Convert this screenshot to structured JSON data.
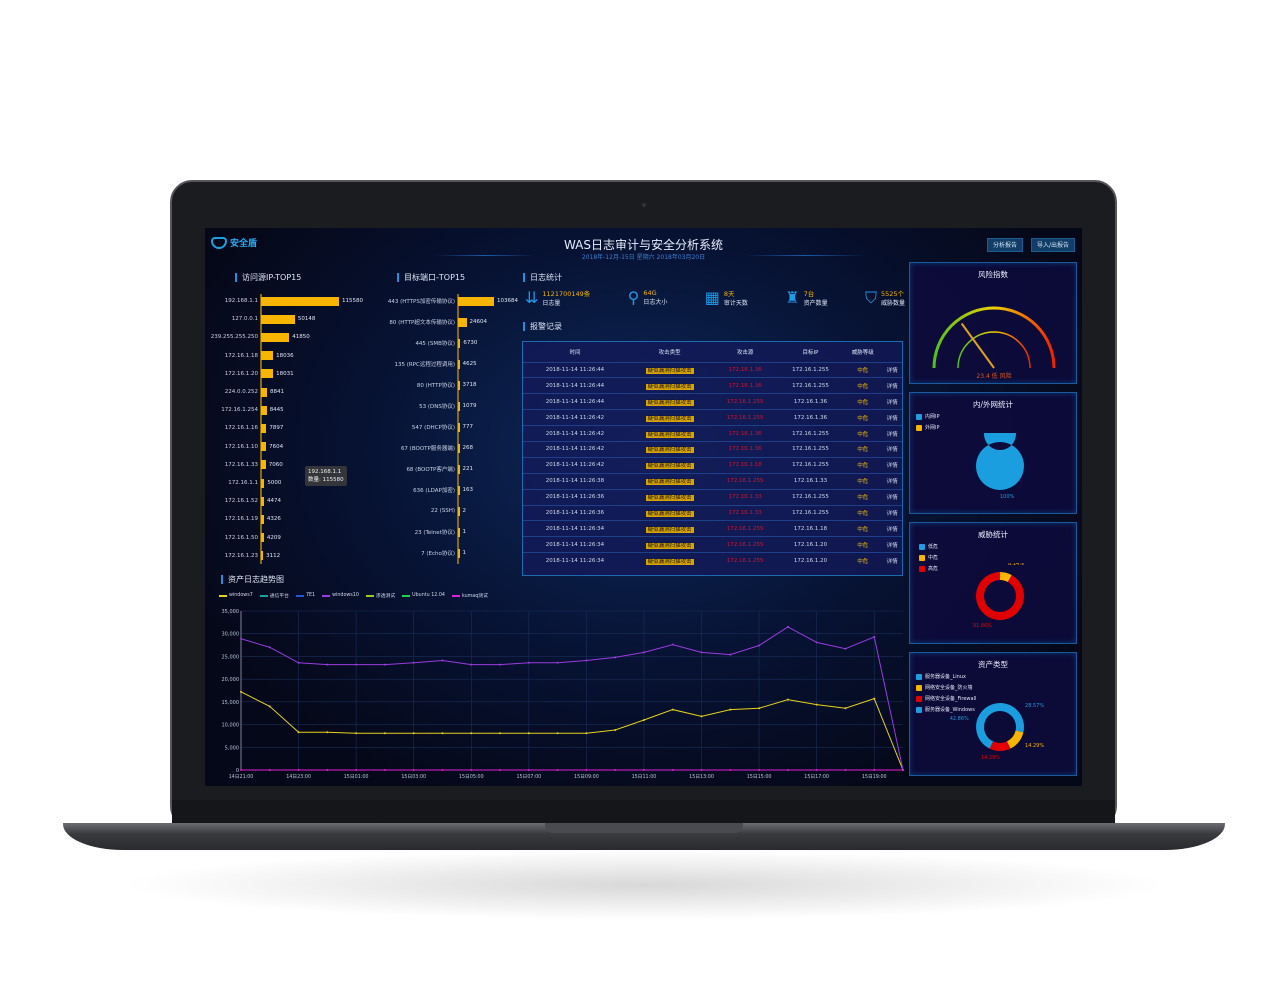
{
  "header": {
    "logo_text": "安全盾",
    "title": "WAS日志审计与安全分析系统",
    "subtitle": "2018年-12月-15日 星期六 2018年03月20日",
    "buttons": [
      "分析报告",
      "导入/出报告"
    ]
  },
  "ip_top15": {
    "title": "访问源IP-TOP15",
    "items": [
      {
        "label": "192.168.1.1",
        "value": 115580
      },
      {
        "label": "127.0.0.1",
        "value": 50148
      },
      {
        "label": "239.255.255.250",
        "value": 41850
      },
      {
        "label": "172.16.1.18",
        "value": 18036
      },
      {
        "label": "172.16.1.20",
        "value": 18031
      },
      {
        "label": "224.0.0.252",
        "value": 8841
      },
      {
        "label": "172.16.1.254",
        "value": 8445
      },
      {
        "label": "172.16.1.16",
        "value": 7897
      },
      {
        "label": "172.16.1.10",
        "value": 7604
      },
      {
        "label": "172.16.1.33",
        "value": 7060
      },
      {
        "label": "172.16.1.1",
        "value": 5000
      },
      {
        "label": "172.16.1.52",
        "value": 4474
      },
      {
        "label": "172.16.1.19",
        "value": 4326
      },
      {
        "label": "172.16.1.50",
        "value": 4209
      },
      {
        "label": "172.16.1.23",
        "value": 3112
      }
    ],
    "tooltip": {
      "line1": "192.168.1.1",
      "line2": "数量: 115580"
    }
  },
  "port_top15": {
    "title": "目标端口-TOP15",
    "items": [
      {
        "label": "443 (HTTPS加密传输协议)",
        "value": 103684
      },
      {
        "label": "80 (HTTP超文本传输协议)",
        "value": 24604
      },
      {
        "label": "445 (SMB协议)",
        "value": 6730
      },
      {
        "label": "135 (RPC远程过程调用)",
        "value": 4625
      },
      {
        "label": "80 (HTTP协议)",
        "value": 3718
      },
      {
        "label": "53 (DNS协议)",
        "value": 1079
      },
      {
        "label": "547 (DHCP协议)",
        "value": 777
      },
      {
        "label": "67 (BOOTP服务器端)",
        "value": 268
      },
      {
        "label": "68 (BOOTP客户端)",
        "value": 221
      },
      {
        "label": "636 (LDAP加密)",
        "value": 163
      },
      {
        "label": "22 (SSH)",
        "value": 2
      },
      {
        "label": "23 (Telnet协议)",
        "value": 1
      },
      {
        "label": "7 (Echo协议)",
        "value": 1
      }
    ]
  },
  "log_stats": {
    "title": "日志统计",
    "items": [
      {
        "icon": "sort-icon",
        "value": "1121700149条",
        "label": "日志量"
      },
      {
        "icon": "search-zoom-icon",
        "value": "64G",
        "label": "日志大小"
      },
      {
        "icon": "calendar-icon",
        "value": "8天",
        "label": "审计天数"
      },
      {
        "icon": "asset-icon",
        "value": "7台",
        "label": "资产数量"
      },
      {
        "icon": "shield-icon",
        "value": "5525个",
        "label": "威胁数量"
      }
    ]
  },
  "alarms": {
    "title": "报警记录",
    "columns": [
      "时间",
      "攻击类型",
      "攻击源",
      "目标IP",
      "威胁等级",
      ""
    ],
    "rows": [
      [
        "2018-11-14 11:26:44",
        "疑似漏洞扫描攻击",
        "172.16.1.36",
        "172.16.1.255",
        "中危",
        "详情"
      ],
      [
        "2018-11-14 11:26:44",
        "疑似漏洞扫描攻击",
        "172.16.1.36",
        "172.16.1.255",
        "中危",
        "详情"
      ],
      [
        "2018-11-14 11:26:44",
        "疑似漏洞扫描攻击",
        "172.16.1.255",
        "172.16.1.36",
        "中危",
        "详情"
      ],
      [
        "2018-11-14 11:26:42",
        "疑似漏洞扫描攻击",
        "172.16.1.255",
        "172.16.1.36",
        "中危",
        "详情"
      ],
      [
        "2018-11-14 11:26:42",
        "疑似漏洞扫描攻击",
        "172.16.1.36",
        "172.16.1.255",
        "中危",
        "详情"
      ],
      [
        "2018-11-14 11:26:42",
        "疑似漏洞扫描攻击",
        "172.16.1.36",
        "172.16.1.255",
        "中危",
        "详情"
      ],
      [
        "2018-11-14 11:26:42",
        "疑似漏洞扫描攻击",
        "172.16.1.18",
        "172.16.1.255",
        "中危",
        "详情"
      ],
      [
        "2018-11-14 11:26:38",
        "疑似漏洞扫描攻击",
        "172.16.1.255",
        "172.16.1.33",
        "中危",
        "详情"
      ],
      [
        "2018-11-14 11:26:36",
        "疑似漏洞扫描攻击",
        "172.16.1.33",
        "172.16.1.255",
        "中危",
        "详情"
      ],
      [
        "2018-11-14 11:26:36",
        "疑似漏洞扫描攻击",
        "172.16.1.33",
        "172.16.1.255",
        "中危",
        "详情"
      ],
      [
        "2018-11-14 11:26:34",
        "疑似漏洞扫描攻击",
        "172.16.1.255",
        "172.16.1.18",
        "中危",
        "详情"
      ],
      [
        "2018-11-14 11:26:34",
        "疑似漏洞扫描攻击",
        "172.16.1.255",
        "172.16.1.20",
        "中危",
        "详情"
      ],
      [
        "2018-11-14 11:26:34",
        "疑似漏洞扫描攻击",
        "172.16.1.255",
        "172.16.1.20",
        "中危",
        "详情"
      ]
    ]
  },
  "risk": {
    "title": "风险指数",
    "value_text": "23.4 低 风险",
    "level": 0.3
  },
  "inout": {
    "title": "内/外网统计",
    "legend": [
      "内网IP",
      "外网IP"
    ],
    "slices": [
      {
        "name": "内网IP",
        "value": 100,
        "color": "#1a9ee0"
      },
      {
        "name": "外网IP",
        "value": 0,
        "color": "#f7b500"
      }
    ],
    "labels": [
      "100%"
    ]
  },
  "threat": {
    "title": "威胁统计",
    "legend": [
      "低危",
      "中危",
      "高危"
    ],
    "slices": [
      {
        "name": "低危",
        "value": 0,
        "color": "#1a9ee0"
      },
      {
        "name": "中危",
        "value": 8.14,
        "color": "#f7b500"
      },
      {
        "name": "高危",
        "value": 91.86,
        "color": "#e00000"
      }
    ],
    "labels": [
      "0%",
      "8.14%",
      "91.86%"
    ]
  },
  "asset": {
    "title": "资产类型",
    "legend": [
      "服务器设备_Linux",
      "网络安全设备_防火墙",
      "网络安全设备_Firewall",
      "服务器设备_Windows"
    ],
    "slices": [
      {
        "name": "服务器设备_Linux",
        "value": 28.57,
        "color": "#1a9ee0"
      },
      {
        "name": "网络安全设备_防火墙",
        "value": 14.29,
        "color": "#f7b500"
      },
      {
        "name": "网络安全设备_Firewall",
        "value": 14.29,
        "color": "#e00000"
      },
      {
        "name": "服务器设备_Windows",
        "value": 42.86,
        "color": "#1a9ee0"
      }
    ],
    "labels": [
      "28.57%",
      "14.29%",
      "14.29%",
      "42.86%"
    ]
  },
  "chart_data": {
    "type": "line",
    "title": "资产日志趋势图",
    "ylim": [
      0,
      35000
    ],
    "yticks": [
      "0",
      "5,000",
      "10,000",
      "15,000",
      "20,000",
      "25,000",
      "30,000",
      "35,000"
    ],
    "grid": true,
    "legend_position": "top-left",
    "x": [
      "14日21:00",
      "",
      "14日23:00",
      "",
      "15日01:00",
      "",
      "15日03:00",
      "",
      "15日05:00",
      "",
      "15日07:00",
      "",
      "15日09:00",
      "",
      "15日11:00",
      "",
      "15日13:00",
      "",
      "15日15:00",
      "",
      "15日17:00",
      "",
      "15日19:00",
      ""
    ],
    "series": [
      {
        "name": "windows7",
        "color": "#e6d21c",
        "values": [
          17200,
          14000,
          8300,
          8300,
          8100,
          8100,
          8100,
          8100,
          8100,
          8100,
          8100,
          8100,
          8100,
          8800,
          11000,
          13300,
          11800,
          13300,
          13600,
          15500,
          14400,
          13600,
          15700,
          0
        ]
      },
      {
        "name": "通信平台",
        "color": "#14a39a",
        "values": null
      },
      {
        "name": "7E1",
        "color": "#2156d8",
        "values": null
      },
      {
        "name": "windows10",
        "color": "#9a3be0",
        "values": [
          28900,
          27000,
          23600,
          23200,
          23200,
          23200,
          23600,
          24100,
          23200,
          23200,
          23600,
          23600,
          24100,
          24800,
          25900,
          27600,
          25900,
          25400,
          27400,
          31500,
          28100,
          26700,
          29300,
          0
        ]
      },
      {
        "name": "渗透测试",
        "color": "#9ccc2c",
        "values": null
      },
      {
        "name": "Ubuntu 12.04",
        "color": "#18d24a",
        "values": null
      },
      {
        "name": "kumaq测试",
        "color": "#e020d8",
        "values": [
          0,
          0,
          0,
          0,
          0,
          0,
          0,
          0,
          0,
          0,
          0,
          0,
          0,
          0,
          0,
          0,
          0,
          0,
          0,
          0,
          0,
          0,
          0,
          0
        ]
      }
    ]
  }
}
